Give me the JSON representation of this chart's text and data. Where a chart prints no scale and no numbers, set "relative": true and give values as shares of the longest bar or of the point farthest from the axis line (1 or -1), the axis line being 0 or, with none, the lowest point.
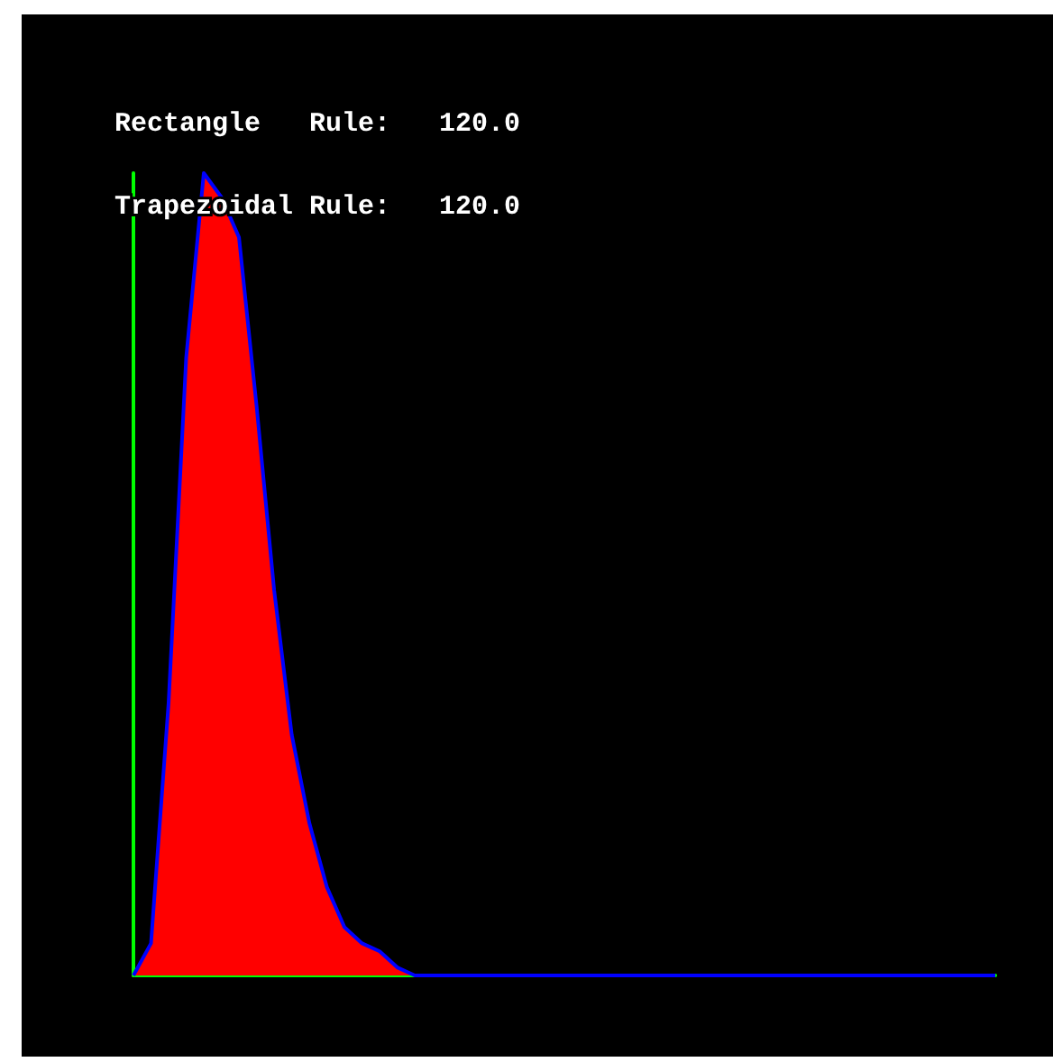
{
  "chart_data": {
    "type": "area",
    "relative": true,
    "categories": [
      null,
      null,
      null,
      null,
      null,
      null,
      null,
      null,
      null,
      null,
      null,
      null,
      null,
      null,
      null,
      null,
      null,
      null,
      null,
      null,
      null,
      null,
      null,
      null,
      null,
      null,
      null,
      null,
      null,
      null,
      null,
      null,
      null,
      null,
      null,
      null,
      null,
      null,
      null,
      null,
      null,
      null,
      null,
      null,
      null,
      null,
      null,
      null,
      null,
      null
    ],
    "series": [
      {
        "color": "#ff0000",
        "values": [
          0,
          0.04,
          0.34,
          0.77,
          1,
          0.97,
          0.92,
          0.71,
          0.48,
          0.3,
          0.19,
          0.11,
          0.06,
          0.04,
          0.03,
          0.01,
          0,
          0,
          0,
          0,
          0,
          0,
          0,
          0,
          0,
          0,
          0,
          0,
          0,
          0,
          0,
          0,
          0,
          0,
          0,
          0,
          0,
          0,
          0,
          0,
          0,
          0,
          0,
          0,
          0,
          0,
          0,
          0,
          0,
          0
        ]
      }
    ],
    "annotations": [
      "Rectangle   Rule:   120.0",
      "Trapezoidal Rule:   120.0"
    ],
    "grid": false
  }
}
